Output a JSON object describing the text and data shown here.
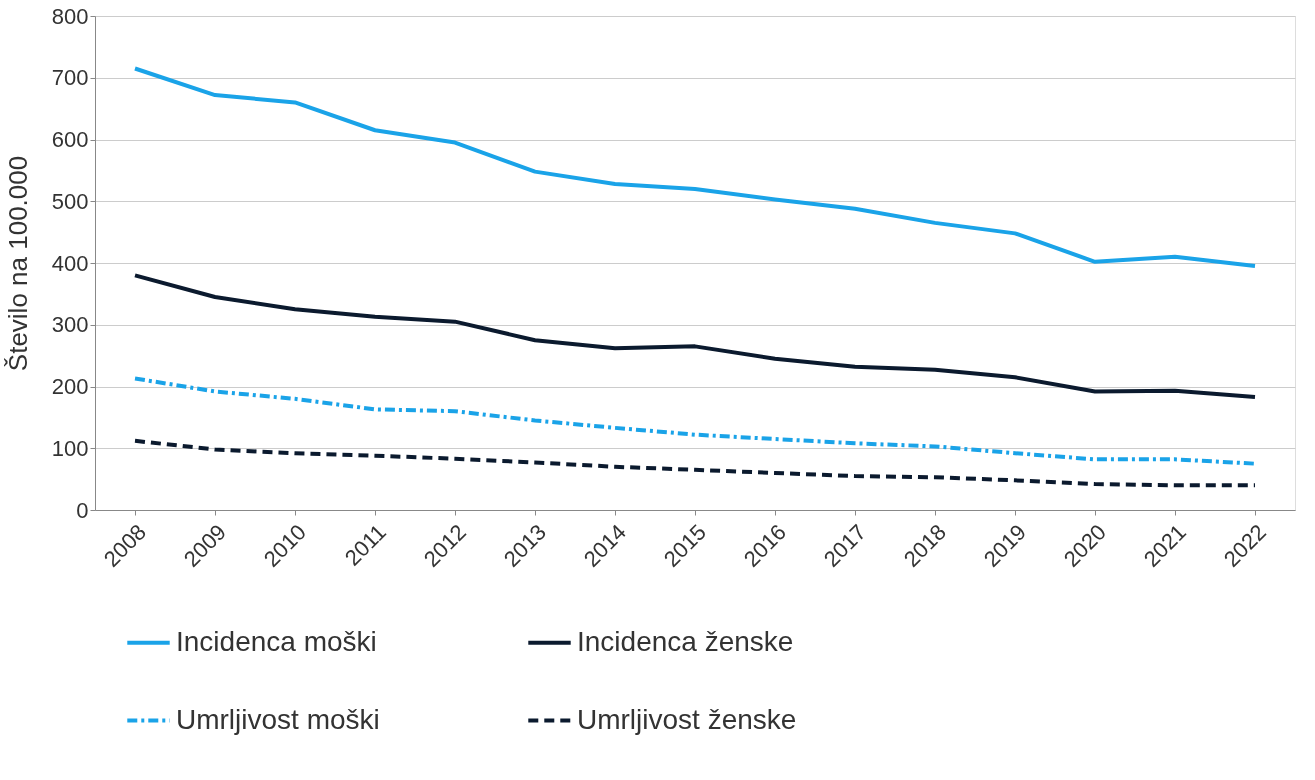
{
  "chart_data": {
    "type": "line",
    "ylabel": "Število na 100.000",
    "categories": [
      "2008",
      "2009",
      "2010",
      "2011",
      "2012",
      "2013",
      "2014",
      "2015",
      "2016",
      "2017",
      "2018",
      "2019",
      "2020",
      "2021",
      "2022"
    ],
    "ylim": [
      0,
      800
    ],
    "yticks": [
      0,
      100,
      200,
      300,
      400,
      500,
      600,
      700,
      800
    ],
    "grid": "y",
    "legend": "bottom",
    "series": [
      {
        "name": "Incidenca moški",
        "color": "#1aa3e8",
        "line_style": "solid",
        "values": [
          715,
          672,
          660,
          615,
          595,
          548,
          528,
          520,
          503,
          488,
          465,
          448,
          402,
          410,
          395
        ]
      },
      {
        "name": "Incidenca ženske",
        "color": "#0b1a2e",
        "line_style": "solid",
        "values": [
          380,
          345,
          325,
          313,
          305,
          275,
          262,
          265,
          245,
          232,
          227,
          215,
          192,
          193,
          183
        ]
      },
      {
        "name": "Umrljivost moški",
        "color": "#1aa3e8",
        "line_style": "dashdot",
        "values": [
          213,
          192,
          180,
          163,
          160,
          145,
          133,
          122,
          115,
          108,
          103,
          92,
          82,
          82,
          75
        ]
      },
      {
        "name": "Umrljivost ženske",
        "color": "#0b1a2e",
        "line_style": "dashed",
        "values": [
          112,
          98,
          92,
          88,
          83,
          77,
          70,
          65,
          60,
          55,
          53,
          48,
          42,
          40,
          40
        ]
      }
    ]
  }
}
